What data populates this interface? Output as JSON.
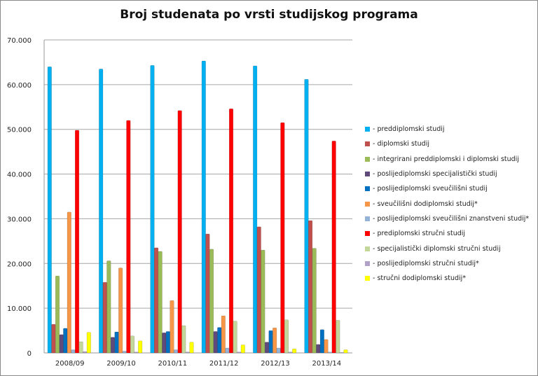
{
  "chart_data": {
    "type": "bar",
    "title": "Broj studenata po vrsti studijskog programa",
    "xlabel": "",
    "ylabel": "",
    "ylim": [
      0,
      70000
    ],
    "yticks": [
      "0",
      "10.000",
      "20.000",
      "30.000",
      "40.000",
      "50.000",
      "60.000",
      "70.000"
    ],
    "grid": true,
    "legend_position": "right",
    "categories": [
      "2008/09",
      "2009/10",
      "2010/11",
      "2011/12",
      "2012/13",
      "2013/14"
    ],
    "series": [
      {
        "name": "- preddiplomski studij",
        "color": "#00b0f0",
        "values": [
          64000,
          63500,
          64300,
          65300,
          64200,
          61200
        ]
      },
      {
        "name": "- diplomski studij",
        "color": "#c0504d",
        "values": [
          6400,
          15800,
          23500,
          26600,
          28200,
          29600
        ]
      },
      {
        "name": "- integrirani preddiplomski i diplomski studij",
        "color": "#9bbb59",
        "values": [
          17200,
          20600,
          22700,
          23200,
          23000,
          23400
        ]
      },
      {
        "name": "- poslijediplomski specijalistički studij",
        "color": "#604a7b",
        "values": [
          4100,
          3500,
          4500,
          4800,
          2400,
          1900
        ]
      },
      {
        "name": "- poslijediplomski sveučilišni studij",
        "color": "#0070c0",
        "values": [
          5500,
          4700,
          4800,
          5700,
          5000,
          5200
        ]
      },
      {
        "name": "- sveučilišni dodiplomski studij*",
        "color": "#f79646",
        "values": [
          31500,
          19000,
          11700,
          8300,
          5600,
          3000
        ]
      },
      {
        "name": "- poslijediplomski sveučilišni znanstveni studij*",
        "color": "#95b3d7",
        "values": [
          700,
          400,
          700,
          1100,
          1100,
          200
        ]
      },
      {
        "name": "- prediplomski stručni studij",
        "color": "#ff0000",
        "values": [
          49800,
          52000,
          54200,
          54600,
          51500,
          47400
        ]
      },
      {
        "name": "- specijalistički diplomski stručni studij",
        "color": "#c4d79b",
        "values": [
          2500,
          3800,
          6100,
          7100,
          7400,
          7300
        ]
      },
      {
        "name": "- poslijediplomski stručni studij*",
        "color": "#b1a0c7",
        "values": [
          300,
          200,
          200,
          200,
          200,
          100
        ]
      },
      {
        "name": "- stručni dodiplomski studij*",
        "color": "#ffff00",
        "values": [
          4600,
          2700,
          2400,
          1800,
          900,
          700
        ]
      }
    ]
  }
}
